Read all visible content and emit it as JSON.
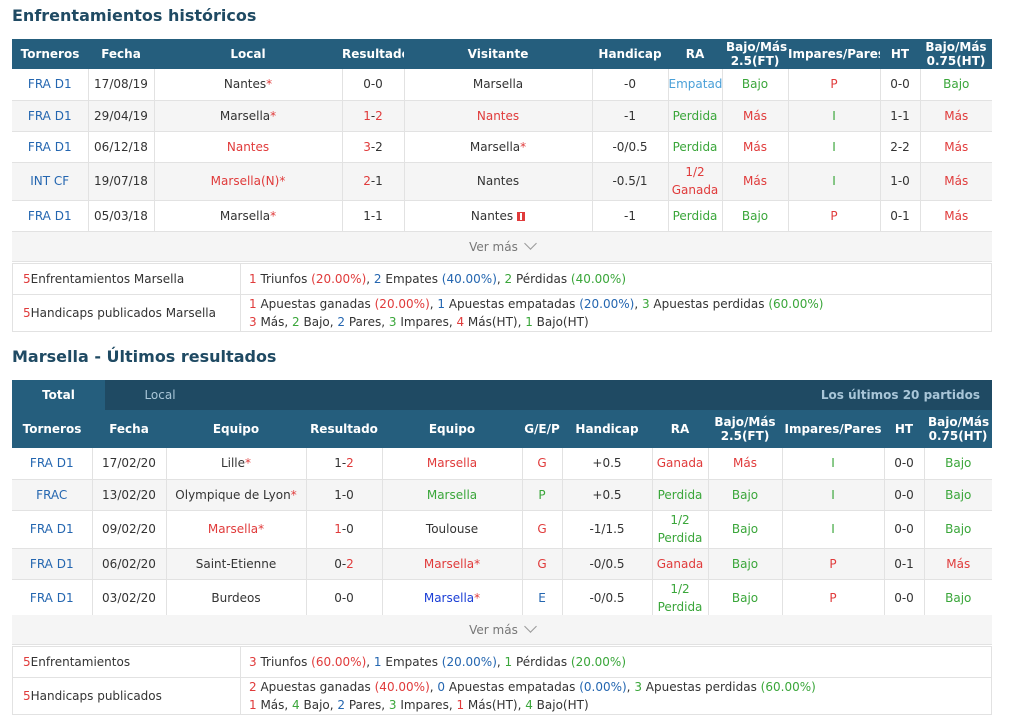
{
  "h2h": {
    "title": "Enfrentamientos históricos",
    "headers": [
      "Torneros",
      "Fecha",
      "Local",
      "Resultado",
      "Visitante",
      "Handicap",
      "RA",
      "Bajo/Más 2.5(FT)",
      "Impares/Pares",
      "HT",
      "Bajo/Más 0.75(HT)"
    ],
    "rows": [
      {
        "league": "FRA D1",
        "date": "17/08/19",
        "home": "Nantes",
        "home_star": "*",
        "home_color": "#333333",
        "score_a": "0",
        "score_b": "0",
        "score_a_color": "#333333",
        "score_b_color": "#333333",
        "away": "Marsella",
        "away_star": "",
        "away_color": "#333333",
        "handicap": "-0",
        "ra": "Empatada",
        "ra_color": "#4aa0d8",
        "ou": "Bajo",
        "ou_color": "#3aa63a",
        "oe": "P",
        "oe_color": "#e03b3b",
        "ht": "0-0",
        "ouht": "Bajo",
        "ouht_color": "#3aa63a"
      },
      {
        "league": "FRA D1",
        "date": "29/04/19",
        "home": "Marsella",
        "home_star": "*",
        "home_color": "#333333",
        "score_a": "1",
        "score_b": "2",
        "score_a_color": "#e03b3b",
        "score_b_color": "#e03b3b",
        "away": "Nantes",
        "away_star": "",
        "away_color": "#e03b3b",
        "handicap": "-1",
        "ra": "Perdida",
        "ra_color": "#3aa63a",
        "ou": "Más",
        "ou_color": "#e03b3b",
        "oe": "I",
        "oe_color": "#3aa63a",
        "ht": "1-1",
        "ouht": "Más",
        "ouht_color": "#e03b3b"
      },
      {
        "league": "FRA D1",
        "date": "06/12/18",
        "home": "Nantes",
        "home_star": "",
        "home_color": "#e03b3b",
        "score_a": "3",
        "score_b": "2",
        "score_a_color": "#e03b3b",
        "score_b_color": "#333333",
        "away": "Marsella",
        "away_star": "*",
        "away_color": "#333333",
        "handicap": "-0/0.5",
        "ra": "Perdida",
        "ra_color": "#3aa63a",
        "ou": "Más",
        "ou_color": "#e03b3b",
        "oe": "I",
        "oe_color": "#3aa63a",
        "ht": "2-2",
        "ouht": "Más",
        "ouht_color": "#e03b3b"
      },
      {
        "league": "INT CF",
        "date": "19/07/18",
        "home": "Marsella(N)",
        "home_star": "*",
        "home_color": "#e03b3b",
        "score_a": "2",
        "score_b": "1",
        "score_a_color": "#e03b3b",
        "score_b_color": "#333333",
        "away": "Nantes",
        "away_star": "",
        "away_color": "#333333",
        "handicap": "-0.5/1",
        "ra": "1/2 Ganada",
        "ra_line1": "1/2",
        "ra_line2": "Ganada",
        "ra_color": "#e03b3b",
        "ou": "Más",
        "ou_color": "#e03b3b",
        "oe": "I",
        "oe_color": "#3aa63a",
        "ht": "1-0",
        "ouht": "Más",
        "ouht_color": "#e03b3b"
      },
      {
        "league": "FRA D1",
        "date": "05/03/18",
        "home": "Marsella",
        "home_star": "*",
        "home_color": "#333333",
        "score_a": "1",
        "score_b": "1",
        "score_a_color": "#333333",
        "score_b_color": "#333333",
        "away": "Nantes",
        "away_star": "",
        "away_color": "#333333",
        "away_flag": true,
        "handicap": "-1",
        "ra": "Perdida",
        "ra_color": "#3aa63a",
        "ou": "Bajo",
        "ou_color": "#3aa63a",
        "oe": "P",
        "oe_color": "#e03b3b",
        "ht": "0-1",
        "ouht": "Más",
        "ouht_color": "#e03b3b"
      }
    ],
    "ver_mas": "Ver más",
    "summary": [
      {
        "count": "5",
        "label": "Enfrentamientos Marsella",
        "lines": [
          [
            {
              "t": "1",
              "c": "#e03b3b"
            },
            {
              "t": " Triunfos ",
              "c": "#333333"
            },
            {
              "t": "(20.00%)",
              "c": "#e03b3b"
            },
            {
              "t": ", ",
              "c": "#333333"
            },
            {
              "t": "2",
              "c": "#2466b0"
            },
            {
              "t": " Empates ",
              "c": "#333333"
            },
            {
              "t": "(40.00%)",
              "c": "#2466b0"
            },
            {
              "t": ", ",
              "c": "#333333"
            },
            {
              "t": "2",
              "c": "#3aa63a"
            },
            {
              "t": " Pérdidas ",
              "c": "#333333"
            },
            {
              "t": "(40.00%)",
              "c": "#3aa63a"
            }
          ]
        ]
      },
      {
        "count": "5",
        "label": "Handicaps publicados Marsella",
        "lines": [
          [
            {
              "t": "1",
              "c": "#e03b3b"
            },
            {
              "t": " Apuestas ganadas ",
              "c": "#333333"
            },
            {
              "t": "(20.00%)",
              "c": "#e03b3b"
            },
            {
              "t": ", ",
              "c": "#333333"
            },
            {
              "t": "1",
              "c": "#2466b0"
            },
            {
              "t": " Apuestas empatadas ",
              "c": "#333333"
            },
            {
              "t": "(20.00%)",
              "c": "#2466b0"
            },
            {
              "t": ", ",
              "c": "#333333"
            },
            {
              "t": "3",
              "c": "#3aa63a"
            },
            {
              "t": " Apuestas perdidas ",
              "c": "#333333"
            },
            {
              "t": "(60.00%)",
              "c": "#3aa63a"
            }
          ],
          [
            {
              "t": "3",
              "c": "#e03b3b"
            },
            {
              "t": " Más, ",
              "c": "#333333"
            },
            {
              "t": "2",
              "c": "#3aa63a"
            },
            {
              "t": " Bajo, ",
              "c": "#333333"
            },
            {
              "t": "2",
              "c": "#2466b0"
            },
            {
              "t": " Pares, ",
              "c": "#333333"
            },
            {
              "t": "3",
              "c": "#3aa63a"
            },
            {
              "t": " Impares, ",
              "c": "#333333"
            },
            {
              "t": "4",
              "c": "#e03b3b"
            },
            {
              "t": " Más(HT), ",
              "c": "#333333"
            },
            {
              "t": "1",
              "c": "#3aa63a"
            },
            {
              "t": " Bajo(HT)",
              "c": "#333333"
            }
          ]
        ]
      }
    ]
  },
  "recent": {
    "title": "Marsella - Últimos resultados",
    "tabs": {
      "total": "Total",
      "local": "Local",
      "right": "Los últimos 20 partidos"
    },
    "headers": [
      "Torneros",
      "Fecha",
      "Equipo",
      "Resultado",
      "Equipo",
      "G/E/P",
      "Handicap",
      "RA",
      "Bajo/Más 2.5(FT)",
      "Impares/Pares",
      "HT",
      "Bajo/Más 0.75(HT)"
    ],
    "rows": [
      {
        "league": "FRA D1",
        "date": "17/02/20",
        "home": "Lille",
        "home_star": "*",
        "home_color": "#333333",
        "score_a": "1",
        "score_b": "2",
        "score_a_color": "#333333",
        "score_b_color": "#e03b3b",
        "away": "Marsella",
        "away_star": "",
        "away_color": "#e03b3b",
        "gep": "G",
        "gep_color": "#e03b3b",
        "handicap": "+0.5",
        "ra": "Ganada",
        "ra_color": "#e03b3b",
        "ou": "Más",
        "ou_color": "#e03b3b",
        "oe": "I",
        "oe_color": "#3aa63a",
        "ht": "0-0",
        "ouht": "Bajo",
        "ouht_color": "#3aa63a"
      },
      {
        "league": "FRAC",
        "date": "13/02/20",
        "home": "Olympique de Lyon",
        "home_star": "*",
        "home_color": "#333333",
        "score_a": "1",
        "score_b": "0",
        "score_a_color": "#333333",
        "score_b_color": "#333333",
        "away": "Marsella",
        "away_star": "",
        "away_color": "#3aa63a",
        "gep": "P",
        "gep_color": "#3aa63a",
        "handicap": "+0.5",
        "ra": "Perdida",
        "ra_color": "#3aa63a",
        "ou": "Bajo",
        "ou_color": "#3aa63a",
        "oe": "I",
        "oe_color": "#3aa63a",
        "ht": "0-0",
        "ouht": "Bajo",
        "ouht_color": "#3aa63a"
      },
      {
        "league": "FRA D1",
        "date": "09/02/20",
        "home": "Marsella",
        "home_star": "*",
        "home_color": "#e03b3b",
        "score_a": "1",
        "score_b": "0",
        "score_a_color": "#e03b3b",
        "score_b_color": "#333333",
        "away": "Toulouse",
        "away_star": "",
        "away_color": "#333333",
        "gep": "G",
        "gep_color": "#e03b3b",
        "handicap": "-1/1.5",
        "ra": "1/2 Perdida",
        "ra_line1": "1/2",
        "ra_line2": "Perdida",
        "ra_color": "#3aa63a",
        "ou": "Bajo",
        "ou_color": "#3aa63a",
        "oe": "I",
        "oe_color": "#3aa63a",
        "ht": "0-0",
        "ouht": "Bajo",
        "ouht_color": "#3aa63a"
      },
      {
        "league": "FRA D1",
        "date": "06/02/20",
        "home": "Saint-Etienne",
        "home_star": "",
        "home_color": "#333333",
        "score_a": "0",
        "score_b": "2",
        "score_a_color": "#333333",
        "score_b_color": "#e03b3b",
        "away": "Marsella",
        "away_star": "*",
        "away_color": "#e03b3b",
        "gep": "G",
        "gep_color": "#e03b3b",
        "handicap": "-0/0.5",
        "ra": "Ganada",
        "ra_color": "#e03b3b",
        "ou": "Bajo",
        "ou_color": "#3aa63a",
        "oe": "P",
        "oe_color": "#e03b3b",
        "ht": "0-1",
        "ouht": "Más",
        "ouht_color": "#e03b3b"
      },
      {
        "league": "FRA D1",
        "date": "03/02/20",
        "home": "Burdeos",
        "home_star": "",
        "home_color": "#333333",
        "score_a": "0",
        "score_b": "0",
        "score_a_color": "#333333",
        "score_b_color": "#333333",
        "away": "Marsella",
        "away_star": "*",
        "away_color": "#1a3ed6",
        "gep": "E",
        "gep_color": "#2466b0",
        "handicap": "-0/0.5",
        "ra": "1/2 Perdida",
        "ra_line1": "1/2",
        "ra_line2": "Perdida",
        "ra_color": "#3aa63a",
        "ou": "Bajo",
        "ou_color": "#3aa63a",
        "oe": "P",
        "oe_color": "#e03b3b",
        "ht": "0-0",
        "ouht": "Bajo",
        "ouht_color": "#3aa63a"
      }
    ],
    "ver_mas": "Ver más",
    "summary": [
      {
        "count": "5",
        "label": "Enfrentamientos",
        "lines": [
          [
            {
              "t": "3",
              "c": "#e03b3b"
            },
            {
              "t": " Triunfos ",
              "c": "#333333"
            },
            {
              "t": "(60.00%)",
              "c": "#e03b3b"
            },
            {
              "t": ", ",
              "c": "#333333"
            },
            {
              "t": "1",
              "c": "#2466b0"
            },
            {
              "t": " Empates ",
              "c": "#333333"
            },
            {
              "t": "(20.00%)",
              "c": "#2466b0"
            },
            {
              "t": ", ",
              "c": "#333333"
            },
            {
              "t": "1",
              "c": "#3aa63a"
            },
            {
              "t": " Pérdidas ",
              "c": "#333333"
            },
            {
              "t": "(20.00%)",
              "c": "#3aa63a"
            }
          ]
        ]
      },
      {
        "count": "5",
        "label": "Handicaps publicados",
        "lines": [
          [
            {
              "t": "2",
              "c": "#e03b3b"
            },
            {
              "t": " Apuestas ganadas ",
              "c": "#333333"
            },
            {
              "t": "(40.00%)",
              "c": "#e03b3b"
            },
            {
              "t": ", ",
              "c": "#333333"
            },
            {
              "t": "0",
              "c": "#2466b0"
            },
            {
              "t": " Apuestas empatadas ",
              "c": "#333333"
            },
            {
              "t": "(0.00%)",
              "c": "#2466b0"
            },
            {
              "t": ", ",
              "c": "#333333"
            },
            {
              "t": "3",
              "c": "#3aa63a"
            },
            {
              "t": " Apuestas perdidas ",
              "c": "#333333"
            },
            {
              "t": "(60.00%)",
              "c": "#3aa63a"
            }
          ],
          [
            {
              "t": "1",
              "c": "#e03b3b"
            },
            {
              "t": " Más, ",
              "c": "#333333"
            },
            {
              "t": "4",
              "c": "#3aa63a"
            },
            {
              "t": " Bajo, ",
              "c": "#333333"
            },
            {
              "t": "2",
              "c": "#2466b0"
            },
            {
              "t": " Pares, ",
              "c": "#333333"
            },
            {
              "t": "3",
              "c": "#3aa63a"
            },
            {
              "t": " Impares, ",
              "c": "#333333"
            },
            {
              "t": "1",
              "c": "#e03b3b"
            },
            {
              "t": " Más(HT), ",
              "c": "#333333"
            },
            {
              "t": "4",
              "c": "#3aa63a"
            },
            {
              "t": " Bajo(HT)",
              "c": "#333333"
            }
          ]
        ]
      }
    ]
  }
}
